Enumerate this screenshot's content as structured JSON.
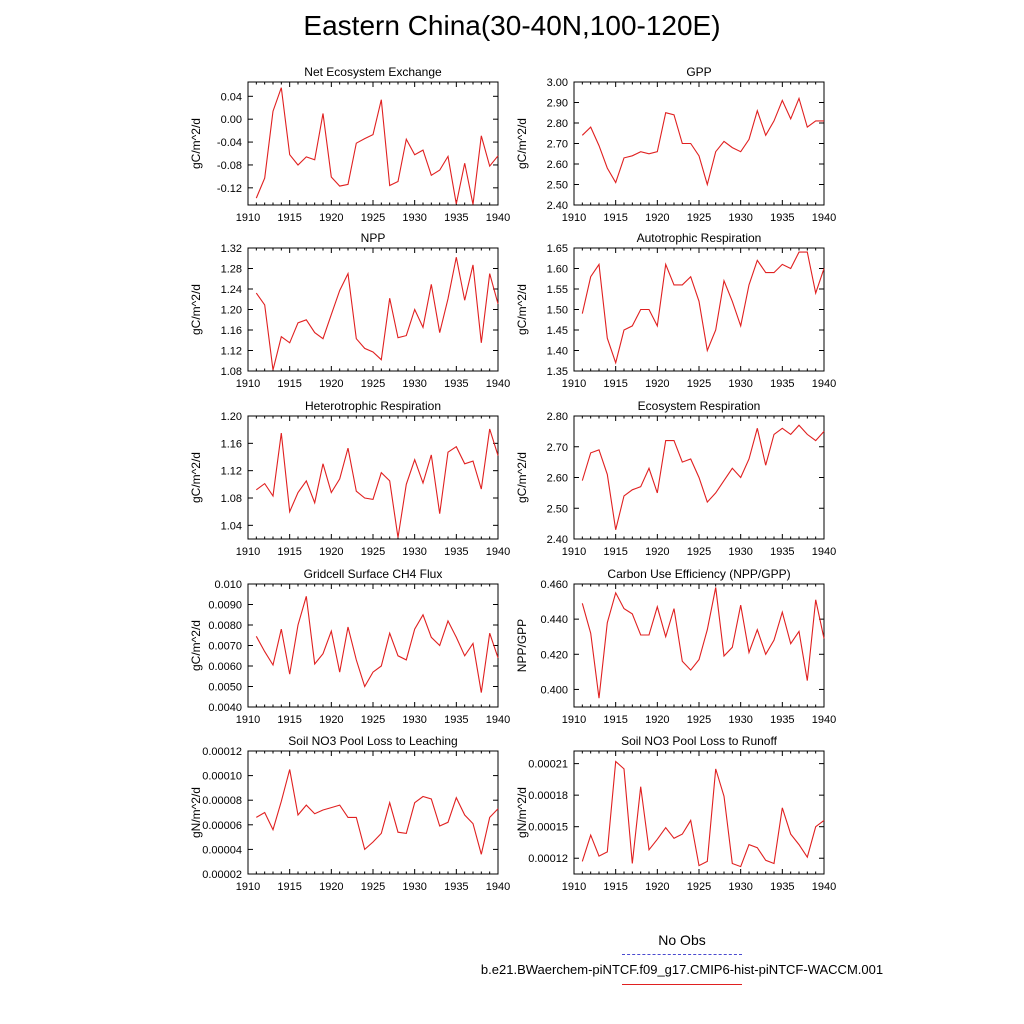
{
  "page": {
    "title": "Eastern China(30-40N,100-120E)"
  },
  "legend": {
    "obs_label": "No Obs",
    "case_label": "b.e21.BWaerchem-piNTCF.f09_g17.CMIP6-hist-piNTCF-WACCM.001",
    "obs_color": "#4a4ad0",
    "case_color": "#e02020"
  },
  "chart_data": [
    {
      "type": "line",
      "title": "Net Ecosystem Exchange",
      "ylabel": "gC/m^2/d",
      "xlim": [
        1910,
        1940
      ],
      "ylim": [
        -0.15,
        0.065
      ],
      "xticks": [
        "1910",
        "1915",
        "1920",
        "1925",
        "1930",
        "1935",
        "1940"
      ],
      "yticks": [
        "0.04",
        "0.00",
        "-0.04",
        "-0.08",
        "-0.12"
      ],
      "ytick_values": [
        0.04,
        0.0,
        -0.04,
        -0.08,
        -0.12
      ],
      "x": [
        1911,
        1912,
        1913,
        1914,
        1915,
        1916,
        1917,
        1918,
        1919,
        1920,
        1921,
        1922,
        1923,
        1924,
        1925,
        1926,
        1927,
        1928,
        1929,
        1930,
        1931,
        1932,
        1933,
        1934,
        1935,
        1936,
        1937,
        1938,
        1939,
        1940
      ],
      "values": [
        -0.138,
        -0.103,
        0.014,
        0.055,
        -0.062,
        -0.08,
        -0.066,
        -0.071,
        0.01,
        -0.101,
        -0.117,
        -0.114,
        -0.042,
        -0.034,
        -0.027,
        0.034,
        -0.116,
        -0.109,
        -0.035,
        -0.062,
        -0.054,
        -0.098,
        -0.089,
        -0.065,
        -0.148,
        -0.077,
        -0.149,
        -0.029,
        -0.082,
        -0.064
      ]
    },
    {
      "type": "line",
      "title": "GPP",
      "ylabel": "gC/m^2/d",
      "xlim": [
        1910,
        1940
      ],
      "ylim": [
        2.4,
        3.0
      ],
      "xticks": [
        "1910",
        "1915",
        "1920",
        "1925",
        "1930",
        "1935",
        "1940"
      ],
      "yticks": [
        "3.00",
        "2.90",
        "2.80",
        "2.70",
        "2.60",
        "2.50",
        "2.40"
      ],
      "ytick_values": [
        3.0,
        2.9,
        2.8,
        2.7,
        2.6,
        2.5,
        2.4
      ],
      "x": [
        1911,
        1912,
        1913,
        1914,
        1915,
        1916,
        1917,
        1918,
        1919,
        1920,
        1921,
        1922,
        1923,
        1924,
        1925,
        1926,
        1927,
        1928,
        1929,
        1930,
        1931,
        1932,
        1933,
        1934,
        1935,
        1936,
        1937,
        1938,
        1939,
        1940
      ],
      "values": [
        2.74,
        2.78,
        2.69,
        2.58,
        2.51,
        2.63,
        2.64,
        2.66,
        2.65,
        2.66,
        2.85,
        2.84,
        2.7,
        2.7,
        2.64,
        2.5,
        2.66,
        2.71,
        2.68,
        2.66,
        2.72,
        2.86,
        2.74,
        2.81,
        2.91,
        2.82,
        2.92,
        2.78,
        2.81,
        2.81
      ]
    },
    {
      "type": "line",
      "title": "NPP",
      "ylabel": "gC/m^2/d",
      "xlim": [
        1910,
        1940
      ],
      "ylim": [
        1.08,
        1.32
      ],
      "xticks": [
        "1910",
        "1915",
        "1920",
        "1925",
        "1930",
        "1935",
        "1940"
      ],
      "yticks": [
        "1.32",
        "1.28",
        "1.24",
        "1.20",
        "1.16",
        "1.12",
        "1.08"
      ],
      "ytick_values": [
        1.32,
        1.28,
        1.24,
        1.2,
        1.16,
        1.12,
        1.08
      ],
      "x": [
        1911,
        1912,
        1913,
        1914,
        1915,
        1916,
        1917,
        1918,
        1919,
        1920,
        1921,
        1922,
        1923,
        1924,
        1925,
        1926,
        1927,
        1928,
        1929,
        1930,
        1931,
        1932,
        1933,
        1934,
        1935,
        1936,
        1937,
        1938,
        1939,
        1940
      ],
      "values": [
        1.232,
        1.209,
        1.082,
        1.147,
        1.135,
        1.174,
        1.18,
        1.155,
        1.143,
        1.19,
        1.237,
        1.27,
        1.143,
        1.124,
        1.117,
        1.102,
        1.222,
        1.145,
        1.149,
        1.2,
        1.165,
        1.249,
        1.155,
        1.221,
        1.302,
        1.218,
        1.287,
        1.135,
        1.27,
        1.211
      ]
    },
    {
      "type": "line",
      "title": "Autotrophic Respiration",
      "ylabel": "gC/m^2/d",
      "xlim": [
        1910,
        1940
      ],
      "ylim": [
        1.35,
        1.65
      ],
      "xticks": [
        "1910",
        "1915",
        "1920",
        "1925",
        "1930",
        "1935",
        "1940"
      ],
      "yticks": [
        "1.65",
        "1.60",
        "1.55",
        "1.50",
        "1.45",
        "1.40",
        "1.35"
      ],
      "ytick_values": [
        1.65,
        1.6,
        1.55,
        1.5,
        1.45,
        1.4,
        1.35
      ],
      "x": [
        1911,
        1912,
        1913,
        1914,
        1915,
        1916,
        1917,
        1918,
        1919,
        1920,
        1921,
        1922,
        1923,
        1924,
        1925,
        1926,
        1927,
        1928,
        1929,
        1930,
        1931,
        1932,
        1933,
        1934,
        1935,
        1936,
        1937,
        1938,
        1939,
        1940
      ],
      "values": [
        1.49,
        1.58,
        1.61,
        1.43,
        1.37,
        1.45,
        1.46,
        1.5,
        1.5,
        1.46,
        1.61,
        1.56,
        1.56,
        1.58,
        1.52,
        1.4,
        1.45,
        1.57,
        1.52,
        1.46,
        1.56,
        1.62,
        1.59,
        1.59,
        1.61,
        1.6,
        1.64,
        1.64,
        1.54,
        1.6
      ]
    },
    {
      "type": "line",
      "title": "Heterotrophic Respiration",
      "ylabel": "gC/m^2/d",
      "xlim": [
        1910,
        1940
      ],
      "ylim": [
        1.02,
        1.2
      ],
      "xticks": [
        "1910",
        "1915",
        "1920",
        "1925",
        "1930",
        "1935",
        "1940"
      ],
      "yticks": [
        "1.20",
        "1.16",
        "1.12",
        "1.08",
        "1.04"
      ],
      "ytick_values": [
        1.2,
        1.16,
        1.12,
        1.08,
        1.04
      ],
      "x": [
        1911,
        1912,
        1913,
        1914,
        1915,
        1916,
        1917,
        1918,
        1919,
        1920,
        1921,
        1922,
        1923,
        1924,
        1925,
        1926,
        1927,
        1928,
        1929,
        1930,
        1931,
        1932,
        1933,
        1934,
        1935,
        1936,
        1937,
        1938,
        1939,
        1940
      ],
      "values": [
        1.092,
        1.101,
        1.083,
        1.175,
        1.06,
        1.088,
        1.105,
        1.073,
        1.13,
        1.088,
        1.108,
        1.153,
        1.09,
        1.08,
        1.078,
        1.117,
        1.105,
        1.022,
        1.1,
        1.136,
        1.102,
        1.143,
        1.057,
        1.147,
        1.155,
        1.13,
        1.134,
        1.093,
        1.181,
        1.142
      ]
    },
    {
      "type": "line",
      "title": "Ecosystem Respiration",
      "ylabel": "gC/m^2/d",
      "xlim": [
        1910,
        1940
      ],
      "ylim": [
        2.4,
        2.8
      ],
      "xticks": [
        "1910",
        "1915",
        "1920",
        "1925",
        "1930",
        "1935",
        "1940"
      ],
      "yticks": [
        "2.80",
        "2.70",
        "2.60",
        "2.50",
        "2.40"
      ],
      "ytick_values": [
        2.8,
        2.7,
        2.6,
        2.5,
        2.4
      ],
      "x": [
        1911,
        1912,
        1913,
        1914,
        1915,
        1916,
        1917,
        1918,
        1919,
        1920,
        1921,
        1922,
        1923,
        1924,
        1925,
        1926,
        1927,
        1928,
        1929,
        1930,
        1931,
        1932,
        1933,
        1934,
        1935,
        1936,
        1937,
        1938,
        1939,
        1940
      ],
      "values": [
        2.59,
        2.68,
        2.69,
        2.61,
        2.43,
        2.54,
        2.56,
        2.57,
        2.63,
        2.55,
        2.72,
        2.72,
        2.65,
        2.66,
        2.6,
        2.52,
        2.55,
        2.59,
        2.63,
        2.6,
        2.66,
        2.76,
        2.64,
        2.74,
        2.76,
        2.74,
        2.77,
        2.74,
        2.72,
        2.75
      ]
    },
    {
      "type": "line",
      "title": "Gridcell Surface CH4 Flux",
      "ylabel": "gC/m^2/d",
      "xlim": [
        1910,
        1940
      ],
      "ylim": [
        0.004,
        0.01
      ],
      "xticks": [
        "1910",
        "1915",
        "1920",
        "1925",
        "1930",
        "1935",
        "1940"
      ],
      "yticks": [
        "0.010",
        "0.0090",
        "0.0080",
        "0.0070",
        "0.0060",
        "0.0050",
        "0.0040"
      ],
      "ytick_values": [
        0.01,
        0.009,
        0.008,
        0.007,
        0.006,
        0.005,
        0.004
      ],
      "x": [
        1911,
        1912,
        1913,
        1914,
        1915,
        1916,
        1917,
        1918,
        1919,
        1920,
        1921,
        1922,
        1923,
        1924,
        1925,
        1926,
        1927,
        1928,
        1929,
        1930,
        1931,
        1932,
        1933,
        1934,
        1935,
        1936,
        1937,
        1938,
        1939,
        1940
      ],
      "values": [
        0.00745,
        0.0067,
        0.00605,
        0.0078,
        0.0056,
        0.008,
        0.0094,
        0.0061,
        0.0066,
        0.0077,
        0.0057,
        0.0079,
        0.0063,
        0.005,
        0.0057,
        0.006,
        0.0076,
        0.0065,
        0.0063,
        0.0078,
        0.0085,
        0.0074,
        0.007,
        0.0082,
        0.0074,
        0.0065,
        0.0071,
        0.0047,
        0.0076,
        0.0064
      ]
    },
    {
      "type": "line",
      "title": "Carbon Use Efficiency (NPP/GPP)",
      "ylabel": "NPP/GPP",
      "xlim": [
        1910,
        1940
      ],
      "ylim": [
        0.39,
        0.46
      ],
      "xticks": [
        "1910",
        "1915",
        "1920",
        "1925",
        "1930",
        "1935",
        "1940"
      ],
      "yticks": [
        "0.460",
        "0.440",
        "0.420",
        "0.400"
      ],
      "ytick_values": [
        0.46,
        0.44,
        0.42,
        0.4
      ],
      "x": [
        1911,
        1912,
        1913,
        1914,
        1915,
        1916,
        1917,
        1918,
        1919,
        1920,
        1921,
        1922,
        1923,
        1924,
        1925,
        1926,
        1927,
        1928,
        1929,
        1930,
        1931,
        1932,
        1933,
        1934,
        1935,
        1936,
        1937,
        1938,
        1939,
        1940
      ],
      "values": [
        0.449,
        0.432,
        0.395,
        0.438,
        0.455,
        0.446,
        0.443,
        0.431,
        0.431,
        0.447,
        0.43,
        0.446,
        0.416,
        0.411,
        0.417,
        0.434,
        0.458,
        0.419,
        0.424,
        0.448,
        0.421,
        0.434,
        0.42,
        0.428,
        0.444,
        0.426,
        0.433,
        0.405,
        0.451,
        0.429
      ]
    },
    {
      "type": "line",
      "title": "Soil NO3 Pool Loss to Leaching",
      "ylabel": "gN/m^2/d",
      "xlim": [
        1910,
        1940
      ],
      "ylim": [
        2e-05,
        0.00012
      ],
      "xticks": [
        "1910",
        "1915",
        "1920",
        "1925",
        "1930",
        "1935",
        "1940"
      ],
      "yticks": [
        "0.00012",
        "0.00010",
        "0.00008",
        "0.00006",
        "0.00004",
        "0.00002"
      ],
      "ytick_values": [
        0.00012,
        0.0001,
        8e-05,
        6e-05,
        4e-05,
        2e-05
      ],
      "x": [
        1911,
        1912,
        1913,
        1914,
        1915,
        1916,
        1917,
        1918,
        1919,
        1920,
        1921,
        1922,
        1923,
        1924,
        1925,
        1926,
        1927,
        1928,
        1929,
        1930,
        1931,
        1932,
        1933,
        1934,
        1935,
        1936,
        1937,
        1938,
        1939,
        1940
      ],
      "values": [
        6.6e-05,
        7e-05,
        5.6e-05,
        7.9e-05,
        0.000105,
        6.8e-05,
        7.6e-05,
        6.9e-05,
        7.2e-05,
        7.4e-05,
        7.6e-05,
        6.6e-05,
        6.6e-05,
        4e-05,
        4.6e-05,
        5.3e-05,
        7.8e-05,
        5.4e-05,
        5.3e-05,
        7.8e-05,
        8.3e-05,
        8.1e-05,
        5.9e-05,
        6.2e-05,
        8.2e-05,
        6.8e-05,
        6.1e-05,
        3.6e-05,
        6.6e-05,
        7.3e-05
      ]
    },
    {
      "type": "line",
      "title": "Soil NO3 Pool Loss to Runoff",
      "ylabel": "gN/m^2/d",
      "xlim": [
        1910,
        1940
      ],
      "ylim": [
        0.000105,
        0.000222
      ],
      "xticks": [
        "1910",
        "1915",
        "1920",
        "1925",
        "1930",
        "1935",
        "1940"
      ],
      "yticks": [
        "0.00021",
        "0.00018",
        "0.00015",
        "0.00012"
      ],
      "ytick_values": [
        0.00021,
        0.00018,
        0.00015,
        0.00012
      ],
      "x": [
        1911,
        1912,
        1913,
        1914,
        1915,
        1916,
        1917,
        1918,
        1919,
        1920,
        1921,
        1922,
        1923,
        1924,
        1925,
        1926,
        1927,
        1928,
        1929,
        1930,
        1931,
        1932,
        1933,
        1934,
        1935,
        1936,
        1937,
        1938,
        1939,
        1940
      ],
      "values": [
        0.000117,
        0.000142,
        0.000122,
        0.000126,
        0.000212,
        0.000205,
        0.000115,
        0.000188,
        0.000128,
        0.000138,
        0.000149,
        0.000139,
        0.000143,
        0.000156,
        0.000113,
        0.000117,
        0.000205,
        0.000179,
        0.000115,
        0.000112,
        0.000133,
        0.00013,
        0.000118,
        0.000115,
        0.000168,
        0.000143,
        0.000133,
        0.000121,
        0.00015,
        0.000156
      ]
    }
  ]
}
